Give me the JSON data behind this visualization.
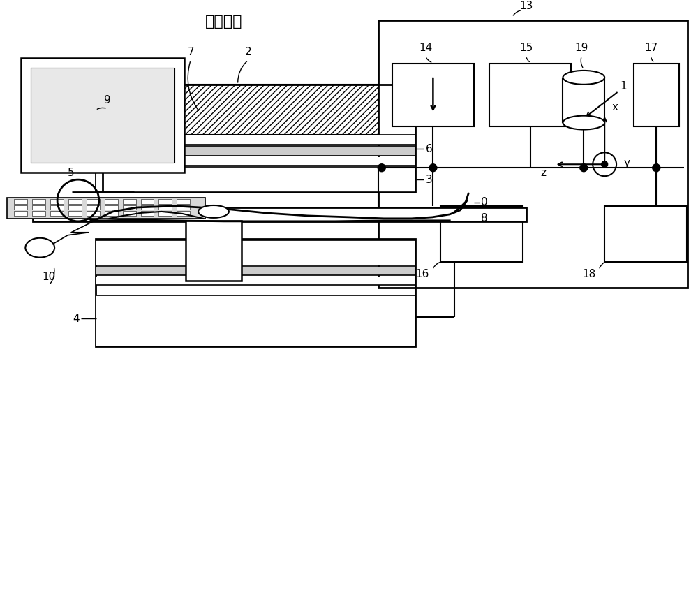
{
  "title": "现有技术",
  "bg_color": "#ffffff",
  "label_color": "#000000",
  "figsize": [
    10.0,
    8.82
  ],
  "dpi": 100,
  "xlim": [
    0,
    10
  ],
  "ylim": [
    0,
    8.82
  ]
}
